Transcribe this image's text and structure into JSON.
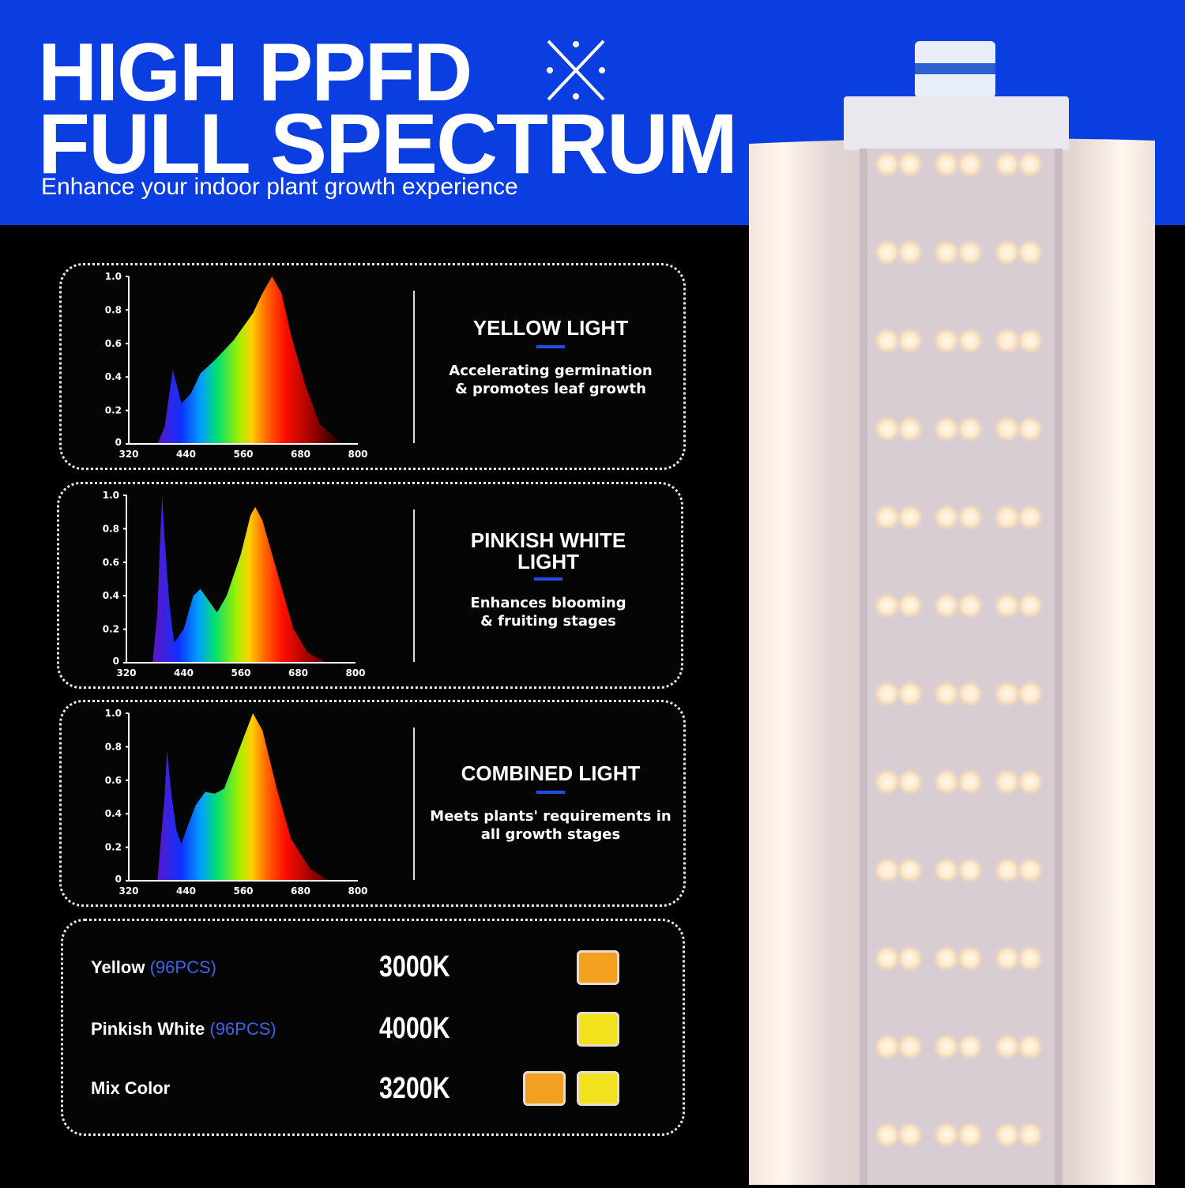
{
  "header": {
    "title_line1": "HIGH PPFD",
    "title_line2": "FULL SPECTRUM",
    "subtitle": "Enhance your indoor plant growth experience",
    "icon": "sparkle-cross-icon",
    "background": "#0b3ee0"
  },
  "panels": [
    {
      "title": "YELLOW LIGHT",
      "description_line1": "Accelerating germination",
      "description_line2": "& promotes leaf growth"
    },
    {
      "title_line1": "PINKISH WHITE",
      "title_line2": "LIGHT",
      "description_line1": "Enhances blooming",
      "description_line2": "& fruiting stages"
    },
    {
      "title": "COMBINED LIGHT",
      "description_line1": "Meets plants' requirements in",
      "description_line2": "all growth stages"
    }
  ],
  "chart_data": [
    {
      "type": "area",
      "x_ticks": [
        "320",
        "440",
        "560",
        "680",
        "800"
      ],
      "y_ticks": [
        "0",
        "0.2",
        "0.4",
        "0.6",
        "0.8",
        "1.0"
      ],
      "xlim": [
        320,
        800
      ],
      "ylim": [
        0,
        1
      ],
      "x": [
        380,
        395,
        405,
        412,
        420,
        430,
        450,
        470,
        500,
        540,
        580,
        600,
        620,
        640,
        660,
        690,
        720,
        760,
        780
      ],
      "y": [
        0,
        0.1,
        0.3,
        0.44,
        0.36,
        0.24,
        0.3,
        0.42,
        0.5,
        0.62,
        0.78,
        0.9,
        1.0,
        0.9,
        0.65,
        0.35,
        0.12,
        0.02,
        0
      ]
    },
    {
      "type": "area",
      "x_ticks": [
        "320",
        "440",
        "560",
        "680",
        "800"
      ],
      "y_ticks": [
        "0",
        "0.2",
        "0.4",
        "0.6",
        "0.8",
        "1.0"
      ],
      "xlim": [
        320,
        800
      ],
      "ylim": [
        0,
        1
      ],
      "x": [
        375,
        385,
        390,
        395,
        400,
        410,
        420,
        440,
        460,
        475,
        490,
        510,
        530,
        560,
        580,
        590,
        605,
        640,
        670,
        700,
        740
      ],
      "y": [
        0,
        0.3,
        0.7,
        1.0,
        0.75,
        0.35,
        0.12,
        0.2,
        0.4,
        0.44,
        0.38,
        0.3,
        0.4,
        0.65,
        0.88,
        0.93,
        0.85,
        0.5,
        0.2,
        0.06,
        0
      ]
    },
    {
      "type": "area",
      "x_ticks": [
        "320",
        "440",
        "560",
        "680",
        "800"
      ],
      "y_ticks": [
        "0",
        "0.2",
        "0.4",
        "0.6",
        "0.8",
        "1.0"
      ],
      "xlim": [
        320,
        800
      ],
      "ylim": [
        0,
        1
      ],
      "x": [
        380,
        395,
        400,
        410,
        420,
        430,
        440,
        460,
        480,
        500,
        520,
        540,
        560,
        580,
        600,
        630,
        660,
        700,
        740
      ],
      "y": [
        0,
        0.5,
        0.78,
        0.5,
        0.3,
        0.22,
        0.3,
        0.45,
        0.53,
        0.52,
        0.55,
        0.7,
        0.85,
        1.0,
        0.9,
        0.55,
        0.25,
        0.07,
        0
      ]
    }
  ],
  "legend": [
    {
      "name": "Yellow",
      "count": "(96PCS)",
      "temp": "3000K",
      "chips": [
        "#f3a020"
      ]
    },
    {
      "name": "Pinkish White",
      "count": "(96PCS)",
      "temp": "4000K",
      "chips": [
        "#f2e21e"
      ]
    },
    {
      "name": "Mix Color",
      "count": "",
      "temp": "3200K",
      "chips": [
        "#f3a020",
        "#f2e21e"
      ]
    }
  ]
}
